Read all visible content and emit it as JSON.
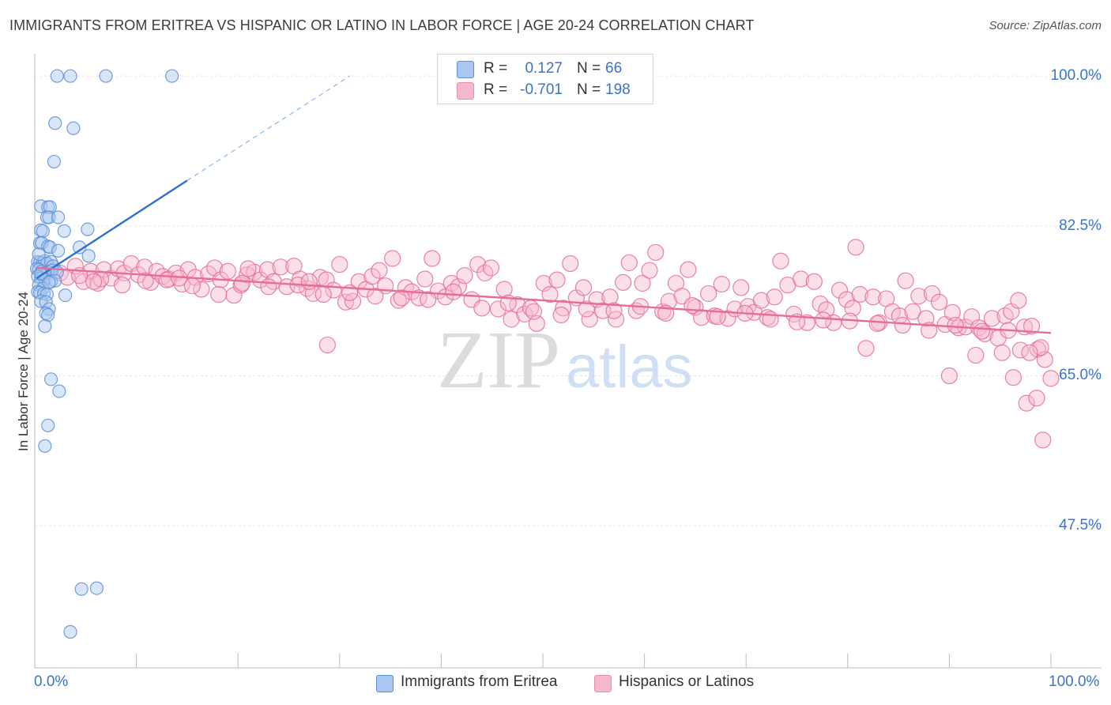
{
  "title": "IMMIGRANTS FROM ERITREA VS HISPANIC OR LATINO IN LABOR FORCE | AGE 20-24 CORRELATION CHART",
  "source": "Source: ZipAtlas.com",
  "watermark": {
    "zip": "ZIP",
    "atlas": "atlas"
  },
  "stats": [
    {
      "r_label": "R =",
      "r_value": "0.127",
      "n_label": "N =",
      "n_value": "66",
      "color": "#a9c7f0"
    },
    {
      "r_label": "R =",
      "r_value": "-0.701",
      "n_label": "N =",
      "n_value": "198",
      "color": "#f6b8cf"
    }
  ],
  "legend": [
    {
      "label": "Immigrants from Eritrea",
      "color": "#a9c7f0"
    },
    {
      "label": "Hispanics or Latinos",
      "color": "#f6b8cf"
    }
  ],
  "chart_data": {
    "type": "scatter",
    "ylabel": "In Labor Force | Age 20-24",
    "x_tick_labels": [
      "0.0%",
      "100.0%"
    ],
    "y_tick_labels": [
      "100.0%",
      "82.5%",
      "65.0%",
      "47.5%"
    ],
    "y_ticks": [
      100.0,
      82.5,
      65.0,
      47.5
    ],
    "xlim": [
      0,
      100
    ],
    "ylim": [
      30.9,
      102.6
    ],
    "grid": true,
    "colors": {
      "blue": "#5b8fd9",
      "blue_fill": "#a9c7f0",
      "pink": "#e56d98",
      "pink_fill": "#f6b8cf",
      "blue_line": "#2f6fcf",
      "pink_line": "#e56d98"
    },
    "series": [
      {
        "name": "Immigrants from Eritrea",
        "trend": {
          "x0": 0.2,
          "y0": 76.4,
          "x1": 15.0,
          "y1": 87.8,
          "dash_x1": 31.0,
          "dash_y1": 100.0
        },
        "points": [
          [
            2.2,
            100.0
          ],
          [
            3.5,
            100.0
          ],
          [
            7.0,
            100.0
          ],
          [
            13.5,
            100.0
          ],
          [
            2.0,
            94.5
          ],
          [
            3.8,
            93.9
          ],
          [
            1.9,
            90.0
          ],
          [
            0.6,
            84.8
          ],
          [
            1.3,
            84.7
          ],
          [
            1.5,
            84.7
          ],
          [
            1.2,
            83.5
          ],
          [
            1.4,
            83.5
          ],
          [
            2.3,
            83.5
          ],
          [
            0.6,
            82.0
          ],
          [
            0.8,
            81.9
          ],
          [
            2.9,
            81.9
          ],
          [
            5.2,
            82.1
          ],
          [
            0.5,
            80.5
          ],
          [
            0.7,
            80.5
          ],
          [
            1.3,
            80.1
          ],
          [
            1.5,
            80.0
          ],
          [
            4.4,
            80.0
          ],
          [
            2.3,
            79.6
          ],
          [
            5.3,
            79.0
          ],
          [
            0.3,
            78.3
          ],
          [
            0.5,
            78.2
          ],
          [
            0.8,
            78.2
          ],
          [
            1.0,
            78.4
          ],
          [
            1.2,
            78.1
          ],
          [
            1.6,
            78.3
          ],
          [
            1.8,
            77.8
          ],
          [
            0.2,
            77.5
          ],
          [
            0.4,
            77.4
          ],
          [
            0.7,
            77.2
          ],
          [
            0.9,
            77.0
          ],
          [
            1.3,
            77.1
          ],
          [
            1.7,
            77.3
          ],
          [
            2.2,
            77.1
          ],
          [
            0.3,
            76.6
          ],
          [
            0.6,
            76.4
          ],
          [
            1.0,
            76.3
          ],
          [
            1.6,
            76.0
          ],
          [
            2.0,
            76.1
          ],
          [
            0.4,
            75.6
          ],
          [
            0.8,
            75.2
          ],
          [
            0.3,
            74.8
          ],
          [
            0.5,
            74.7
          ],
          [
            0.9,
            74.6
          ],
          [
            1.2,
            74.5
          ],
          [
            3.0,
            74.4
          ],
          [
            0.6,
            73.7
          ],
          [
            1.1,
            73.6
          ],
          [
            1.4,
            72.8
          ],
          [
            1.1,
            72.3
          ],
          [
            1.3,
            72.1
          ],
          [
            1.0,
            70.8
          ],
          [
            1.6,
            64.6
          ],
          [
            2.4,
            63.2
          ],
          [
            1.3,
            59.2
          ],
          [
            1.0,
            56.8
          ],
          [
            4.6,
            40.1
          ],
          [
            6.1,
            40.2
          ],
          [
            3.5,
            35.1
          ],
          [
            0.4,
            79.2
          ],
          [
            0.6,
            76.9
          ],
          [
            1.4,
            75.9
          ]
        ]
      },
      {
        "name": "Hispanics or Latinos",
        "trend": {
          "x0": 0.2,
          "y0": 77.6,
          "x1": 100.0,
          "y1": 70.0
        },
        "points": [
          [
            1.5,
            77.5
          ],
          [
            2.5,
            77.0
          ],
          [
            3.2,
            76.5
          ],
          [
            4.0,
            77.8
          ],
          [
            4.8,
            76.0
          ],
          [
            5.5,
            77.2
          ],
          [
            6.2,
            75.8
          ],
          [
            6.8,
            77.4
          ],
          [
            7.5,
            76.4
          ],
          [
            8.2,
            77.5
          ],
          [
            8.8,
            77.0
          ],
          [
            9.5,
            78.1
          ],
          [
            10.2,
            76.8
          ],
          [
            10.8,
            77.7
          ],
          [
            11.4,
            75.9
          ],
          [
            12.0,
            77.2
          ],
          [
            12.6,
            76.6
          ],
          [
            13.2,
            76.3
          ],
          [
            13.9,
            77.0
          ],
          [
            14.5,
            75.7
          ],
          [
            15.1,
            77.4
          ],
          [
            15.8,
            76.5
          ],
          [
            16.4,
            75.1
          ],
          [
            17.1,
            76.9
          ],
          [
            17.7,
            77.6
          ],
          [
            18.3,
            76.2
          ],
          [
            19.0,
            77.2
          ],
          [
            19.6,
            74.4
          ],
          [
            20.3,
            75.6
          ],
          [
            20.9,
            76.8
          ],
          [
            21.6,
            77.1
          ],
          [
            22.2,
            76.2
          ],
          [
            22.9,
            77.4
          ],
          [
            23.5,
            76.0
          ],
          [
            24.2,
            77.7
          ],
          [
            24.8,
            75.4
          ],
          [
            25.5,
            77.8
          ],
          [
            26.1,
            76.3
          ],
          [
            26.8,
            75.2
          ],
          [
            27.4,
            74.6
          ],
          [
            28.1,
            76.5
          ],
          [
            28.7,
            76.2
          ],
          [
            29.4,
            75.0
          ],
          [
            30.0,
            78.0
          ],
          [
            30.6,
            73.6
          ],
          [
            31.3,
            73.7
          ],
          [
            31.9,
            76.0
          ],
          [
            32.6,
            75.1
          ],
          [
            33.2,
            76.6
          ],
          [
            33.9,
            77.3
          ],
          [
            34.5,
            75.5
          ],
          [
            35.2,
            78.7
          ],
          [
            35.8,
            73.8
          ],
          [
            36.5,
            75.3
          ],
          [
            37.1,
            74.8
          ],
          [
            37.8,
            74.1
          ],
          [
            38.4,
            76.3
          ],
          [
            39.1,
            78.7
          ],
          [
            39.7,
            74.9
          ],
          [
            40.4,
            74.2
          ],
          [
            41.0,
            75.8
          ],
          [
            41.7,
            75.4
          ],
          [
            42.3,
            76.7
          ],
          [
            43.0,
            73.9
          ],
          [
            43.6,
            78.0
          ],
          [
            44.3,
            77.0
          ],
          [
            44.9,
            77.6
          ],
          [
            45.6,
            72.8
          ],
          [
            46.2,
            75.1
          ],
          [
            46.9,
            71.6
          ],
          [
            47.5,
            73.3
          ],
          [
            48.2,
            72.2
          ],
          [
            48.8,
            72.9
          ],
          [
            49.4,
            71.1
          ],
          [
            50.1,
            75.8
          ],
          [
            50.7,
            74.5
          ],
          [
            51.4,
            76.2
          ],
          [
            52.0,
            72.9
          ],
          [
            52.7,
            78.1
          ],
          [
            53.3,
            74.1
          ],
          [
            54.0,
            75.3
          ],
          [
            54.6,
            71.6
          ],
          [
            55.3,
            73.9
          ],
          [
            55.9,
            72.6
          ],
          [
            56.6,
            74.2
          ],
          [
            57.2,
            71.6
          ],
          [
            57.9,
            75.9
          ],
          [
            58.5,
            78.2
          ],
          [
            59.2,
            72.6
          ],
          [
            59.8,
            75.8
          ],
          [
            60.5,
            77.3
          ],
          [
            61.1,
            79.4
          ],
          [
            61.8,
            72.5
          ],
          [
            62.4,
            73.7
          ],
          [
            63.1,
            75.8
          ],
          [
            63.7,
            74.3
          ],
          [
            64.3,
            77.4
          ],
          [
            65.0,
            73.0
          ],
          [
            65.6,
            71.8
          ],
          [
            66.3,
            74.6
          ],
          [
            66.9,
            72.0
          ],
          [
            67.6,
            75.7
          ],
          [
            68.2,
            71.7
          ],
          [
            68.9,
            72.8
          ],
          [
            69.5,
            75.3
          ],
          [
            70.2,
            73.1
          ],
          [
            70.8,
            72.4
          ],
          [
            71.5,
            73.8
          ],
          [
            72.1,
            71.8
          ],
          [
            72.8,
            74.2
          ],
          [
            73.4,
            78.4
          ],
          [
            74.1,
            75.6
          ],
          [
            74.7,
            72.2
          ],
          [
            75.4,
            76.3
          ],
          [
            76.0,
            71.2
          ],
          [
            76.7,
            76.0
          ],
          [
            77.3,
            73.4
          ],
          [
            77.9,
            72.7
          ],
          [
            78.6,
            71.2
          ],
          [
            79.2,
            75.0
          ],
          [
            79.9,
            73.9
          ],
          [
            80.5,
            72.9
          ],
          [
            81.2,
            74.5
          ],
          [
            81.8,
            68.2
          ],
          [
            82.5,
            74.2
          ],
          [
            83.1,
            71.2
          ],
          [
            83.8,
            74.0
          ],
          [
            84.4,
            72.5
          ],
          [
            85.1,
            72.0
          ],
          [
            85.7,
            76.1
          ],
          [
            86.4,
            72.5
          ],
          [
            87.0,
            74.3
          ],
          [
            87.7,
            71.7
          ],
          [
            88.3,
            74.6
          ],
          [
            89.0,
            73.6
          ],
          [
            89.6,
            71.0
          ],
          [
            90.3,
            72.4
          ],
          [
            90.9,
            70.6
          ],
          [
            91.6,
            70.7
          ],
          [
            92.2,
            71.9
          ],
          [
            92.9,
            70.6
          ],
          [
            93.5,
            69.9
          ],
          [
            94.2,
            71.7
          ],
          [
            94.8,
            69.4
          ],
          [
            95.5,
            72.0
          ],
          [
            96.1,
            72.5
          ],
          [
            96.8,
            73.8
          ],
          [
            97.4,
            70.7
          ],
          [
            98.1,
            70.8
          ],
          [
            98.7,
            68.1
          ],
          [
            99.4,
            66.9
          ],
          [
            100.0,
            64.7
          ],
          [
            4.4,
            76.7
          ],
          [
            6.5,
            76.3
          ],
          [
            8.6,
            75.6
          ],
          [
            10.9,
            76.1
          ],
          [
            13.0,
            76.2
          ],
          [
            15.5,
            75.5
          ],
          [
            18.1,
            74.5
          ],
          [
            20.4,
            75.8
          ],
          [
            23.0,
            75.4
          ],
          [
            25.9,
            75.6
          ],
          [
            28.4,
            74.5
          ],
          [
            31.0,
            74.7
          ],
          [
            33.5,
            74.3
          ],
          [
            36.1,
            74.1
          ],
          [
            38.7,
            73.9
          ],
          [
            41.2,
            74.8
          ],
          [
            44.0,
            72.9
          ],
          [
            46.6,
            73.5
          ],
          [
            49.1,
            72.5
          ],
          [
            51.8,
            72.1
          ],
          [
            54.3,
            72.8
          ],
          [
            57.0,
            72.6
          ],
          [
            59.6,
            73.1
          ],
          [
            62.1,
            72.3
          ],
          [
            64.7,
            73.2
          ],
          [
            67.2,
            71.9
          ],
          [
            69.9,
            72.3
          ],
          [
            72.4,
            71.6
          ],
          [
            75.0,
            71.3
          ],
          [
            77.6,
            71.5
          ],
          [
            80.2,
            71.4
          ],
          [
            82.9,
            71.1
          ],
          [
            85.4,
            70.9
          ],
          [
            88.0,
            70.3
          ],
          [
            90.6,
            70.9
          ],
          [
            93.2,
            70.2
          ],
          [
            95.8,
            70.3
          ],
          [
            97.0,
            68.0
          ],
          [
            99.0,
            68.3
          ],
          [
            96.3,
            64.8
          ],
          [
            97.6,
            61.8
          ],
          [
            98.6,
            62.4
          ],
          [
            99.2,
            57.5
          ],
          [
            97.9,
            67.7
          ],
          [
            95.2,
            67.7
          ],
          [
            92.6,
            67.4
          ],
          [
            90.0,
            65.0
          ],
          [
            28.8,
            68.6
          ],
          [
            80.8,
            80.0
          ],
          [
            0.9,
            77.1
          ],
          [
            5.8,
            76.0
          ],
          [
            14.2,
            76.4
          ],
          [
            21.0,
            77.5
          ],
          [
            27.0,
            76.0
          ]
        ]
      }
    ]
  }
}
